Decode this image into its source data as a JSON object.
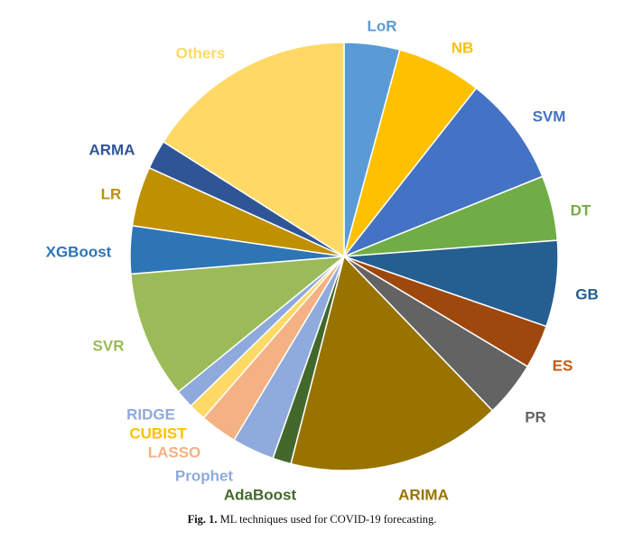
{
  "chart_data": {
    "type": "pie",
    "title": "",
    "start_angle_deg": 0,
    "direction": "clockwise",
    "slices": [
      {
        "label": "LoR",
        "value": 4.2,
        "color": "#5b9bd5"
      },
      {
        "label": "NB",
        "value": 6.4,
        "color": "#ffc000"
      },
      {
        "label": "SVM",
        "value": 8.3,
        "color": "#4472c4"
      },
      {
        "label": "DT",
        "value": 4.9,
        "color": "#70ad47"
      },
      {
        "label": "GB",
        "value": 6.5,
        "color": "#255e91"
      },
      {
        "label": "ES",
        "value": 3.3,
        "color": "#9e480e"
      },
      {
        "label": "PR",
        "value": 4.2,
        "color": "#636363"
      },
      {
        "label": "ARIMA",
        "value": 16.2,
        "color": "#997300"
      },
      {
        "label": "AdaBoost",
        "value": 1.4,
        "color": "#43682b"
      },
      {
        "label": "Prophet",
        "value": 3.2,
        "color": "#8faadc"
      },
      {
        "label": "LASSO",
        "value": 2.8,
        "color": "#f4b183"
      },
      {
        "label": "CUBIST",
        "value": 1.3,
        "color": "#ffd966"
      },
      {
        "label": "RIDGE",
        "value": 1.4,
        "color": "#8ea9db"
      },
      {
        "label": "SVR",
        "value": 9.6,
        "color": "#9bbb59"
      },
      {
        "label": "XGBoost",
        "value": 3.6,
        "color": "#2e75b6"
      },
      {
        "label": "LR",
        "value": 4.5,
        "color": "#bf9000"
      },
      {
        "label": "ARMA",
        "value": 2.2,
        "color": "#2f5597"
      },
      {
        "label": "Others",
        "value": 16.0,
        "color": "#ffd966"
      }
    ],
    "label_colors": {
      "LoR": "#5b9bd5",
      "NB": "#ffc000",
      "SVM": "#4472c4",
      "DT": "#70ad47",
      "GB": "#255e91",
      "ES": "#c55a11",
      "PR": "#636363",
      "ARIMA": "#997300",
      "AdaBoost": "#43682b",
      "Prophet": "#8faadc",
      "LASSO": "#f4b183",
      "CUBIST": "#ffc000",
      "RIDGE": "#8ea9db",
      "SVR": "#9bbb59",
      "XGBoost": "#2e75b6",
      "LR": "#bf9000",
      "ARMA": "#2f5597",
      "Others": "#ffd966"
    }
  },
  "caption": {
    "fig_number": "Fig. 1.",
    "text": "ML techniques used for COVID-19 forecasting."
  }
}
